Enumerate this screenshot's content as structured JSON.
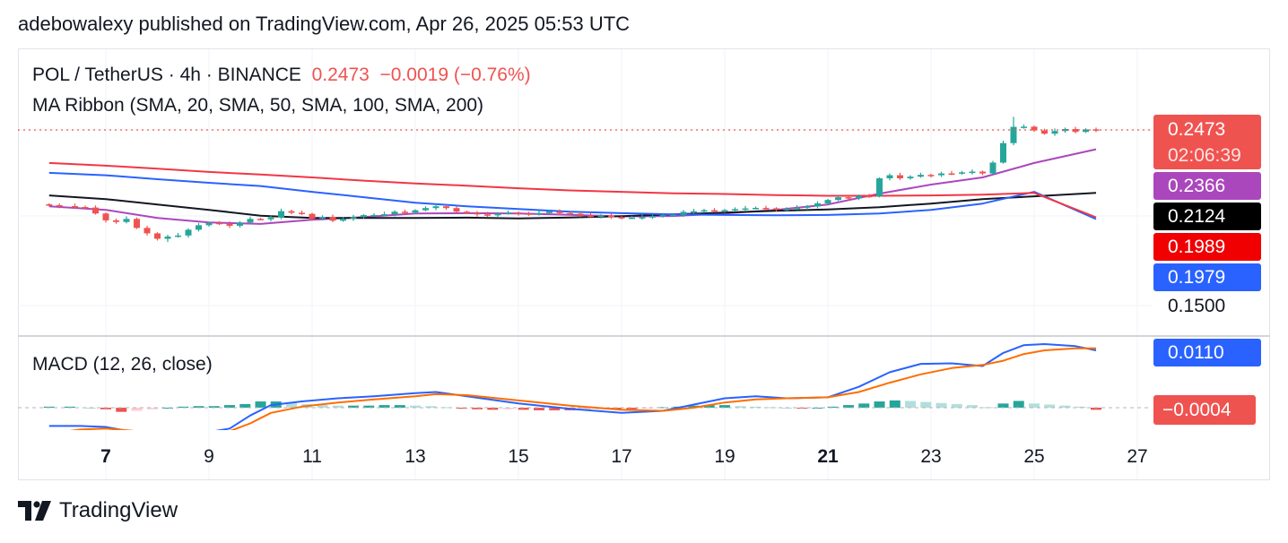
{
  "header": {
    "text": "adebowalexy published on TradingView.com, Apr 26, 2025 05:53 UTC"
  },
  "legend": {
    "pair": "POL / TetherUS · 4h · BINANCE",
    "price": "0.2473",
    "change": "−0.0019 (−0.76%)",
    "ma_ribbon": "MA Ribbon (SMA, 20, SMA, 50, SMA, 100, SMA, 200)",
    "macd": "MACD (12, 26, close)"
  },
  "price_labels": {
    "last": "0.2473",
    "countdown": "02:06:39",
    "sma20": "0.2366",
    "sma50": "0.2124",
    "sma200": "0.1989",
    "sma100": "0.1979",
    "level": "0.1500"
  },
  "macd_labels": {
    "macd": "0.0110",
    "hist": "−0.0004"
  },
  "x_axis": [
    "7",
    "9",
    "11",
    "13",
    "15",
    "17",
    "19",
    "21",
    "23",
    "25",
    "27"
  ],
  "x_axis_bold": [
    "7",
    "21"
  ],
  "footer": {
    "brand": "TradingView"
  },
  "colors": {
    "up": "#26a69a",
    "down": "#ef5350",
    "sma20": "#ab47bc",
    "sma50": "#131722",
    "sma100": "#2962ff",
    "sma200": "#f23645",
    "macd": "#2962ff",
    "signal": "#ff6d00",
    "hist_up": "#26a69a",
    "hist_up_light": "#b2dfdb",
    "hist_down": "#ef5350",
    "hist_down_light": "#ffcdd2"
  },
  "chart_data": [
    {
      "type": "candlestick",
      "title": "POL / TetherUS · 4h · BINANCE",
      "x_unit": "day (April 2025)",
      "x_ticks": [
        7,
        9,
        11,
        13,
        15,
        17,
        19,
        21,
        23,
        25,
        27
      ],
      "y_labels": [
        0.15
      ],
      "last_price": 0.2473,
      "candles": [
        [
          5.9,
          0.2056
        ],
        [
          6.1,
          0.2051
        ],
        [
          6.4,
          0.2046
        ],
        [
          6.6,
          0.2043
        ],
        [
          6.8,
          0.201
        ],
        [
          7.0,
          0.1972
        ],
        [
          7.2,
          0.1963
        ],
        [
          7.4,
          0.198
        ],
        [
          7.6,
          0.193
        ],
        [
          7.8,
          0.19
        ],
        [
          8.0,
          0.187
        ],
        [
          8.2,
          0.1882
        ],
        [
          8.4,
          0.1888
        ],
        [
          8.6,
          0.192
        ],
        [
          8.8,
          0.1945
        ],
        [
          9.0,
          0.1958
        ],
        [
          9.2,
          0.1952
        ],
        [
          9.4,
          0.1942
        ],
        [
          9.6,
          0.196
        ],
        [
          9.8,
          0.198
        ],
        [
          10.0,
          0.1978
        ],
        [
          10.2,
          0.1988
        ],
        [
          10.4,
          0.2023
        ],
        [
          10.6,
          0.2014
        ],
        [
          10.8,
          0.2008
        ],
        [
          11.0,
          0.1982
        ],
        [
          11.2,
          0.199
        ],
        [
          11.4,
          0.197
        ],
        [
          11.6,
          0.1981
        ],
        [
          11.8,
          0.199
        ],
        [
          12.0,
          0.2001
        ],
        [
          12.2,
          0.2002
        ],
        [
          12.4,
          0.2006
        ],
        [
          12.6,
          0.202
        ],
        [
          12.8,
          0.2016
        ],
        [
          13.0,
          0.2028
        ],
        [
          13.2,
          0.204
        ],
        [
          13.4,
          0.205
        ],
        [
          13.6,
          0.204
        ],
        [
          13.8,
          0.202
        ],
        [
          14.0,
          0.2014
        ],
        [
          14.2,
          0.2005
        ],
        [
          14.4,
          0.2
        ],
        [
          14.6,
          0.201
        ],
        [
          14.8,
          0.2015
        ],
        [
          15.0,
          0.201
        ],
        [
          15.2,
          0.2007
        ],
        [
          15.4,
          0.2012
        ],
        [
          15.6,
          0.2021
        ],
        [
          15.8,
          0.2012
        ],
        [
          16.0,
          0.2009
        ],
        [
          16.2,
          0.1998
        ],
        [
          16.4,
          0.1994
        ],
        [
          16.6,
          0.1999
        ],
        [
          16.8,
          0.199
        ],
        [
          17.0,
          0.1985
        ],
        [
          17.2,
          0.1987
        ],
        [
          17.4,
          0.199
        ],
        [
          17.6,
          0.1995
        ],
        [
          17.8,
          0.2001
        ],
        [
          18.0,
          0.2003
        ],
        [
          18.2,
          0.2019
        ],
        [
          18.4,
          0.2022
        ],
        [
          18.6,
          0.2028
        ],
        [
          18.8,
          0.2026
        ],
        [
          19.0,
          0.2029
        ],
        [
          19.2,
          0.2034
        ],
        [
          19.4,
          0.2038
        ],
        [
          19.6,
          0.2041
        ],
        [
          19.8,
          0.2039
        ],
        [
          20.0,
          0.2031
        ],
        [
          20.2,
          0.2035
        ],
        [
          20.4,
          0.2042
        ],
        [
          20.6,
          0.2049
        ],
        [
          20.8,
          0.2066
        ],
        [
          21.0,
          0.2085
        ],
        [
          21.2,
          0.21
        ],
        [
          21.4,
          0.2094
        ],
        [
          21.6,
          0.2107
        ],
        [
          21.8,
          0.2105
        ],
        [
          22.0,
          0.2205
        ],
        [
          22.2,
          0.2222
        ],
        [
          22.4,
          0.2205
        ],
        [
          22.6,
          0.2214
        ],
        [
          22.8,
          0.2224
        ],
        [
          23.0,
          0.2222
        ],
        [
          23.2,
          0.2232
        ],
        [
          23.4,
          0.2231
        ],
        [
          23.6,
          0.2238
        ],
        [
          23.8,
          0.2242
        ],
        [
          24.0,
          0.2232
        ],
        [
          24.2,
          0.2292
        ],
        [
          24.4,
          0.24
        ],
        [
          24.6,
          0.249
        ],
        [
          24.8,
          0.2491
        ],
        [
          25.0,
          0.247
        ],
        [
          25.2,
          0.2452
        ],
        [
          25.4,
          0.2467
        ],
        [
          25.6,
          0.2478
        ],
        [
          25.8,
          0.2462
        ],
        [
          26.0,
          0.2476
        ],
        [
          26.2,
          0.2473
        ]
      ],
      "series": [
        {
          "name": "SMA 20",
          "x": [
            5.9,
            7.0,
            8.0,
            9.0,
            10.0,
            11.0,
            12.0,
            13.0,
            14.0,
            15.0,
            16.0,
            17.0,
            18.0,
            19.0,
            20.0,
            21.0,
            22.0,
            23.0,
            24.0,
            25.0,
            26.2
          ],
          "values": [
            0.205,
            0.203,
            0.1985,
            0.196,
            0.1952,
            0.1975,
            0.199,
            0.201,
            0.2012,
            0.201,
            0.2003,
            0.1994,
            0.1996,
            0.201,
            0.203,
            0.206,
            0.212,
            0.217,
            0.221,
            0.229,
            0.2366
          ]
        },
        {
          "name": "SMA 50",
          "x": [
            5.9,
            7.0,
            8.0,
            9.0,
            10.0,
            11.0,
            12.0,
            13.0,
            14.0,
            15.0,
            16.0,
            17.0,
            18.0,
            19.0,
            20.0,
            21.0,
            22.0,
            23.0,
            24.0,
            25.0,
            26.2
          ],
          "values": [
            0.211,
            0.209,
            0.206,
            0.203,
            0.1998,
            0.1985,
            0.1985,
            0.1985,
            0.1987,
            0.1983,
            0.1988,
            0.1995,
            0.2005,
            0.2015,
            0.2025,
            0.2032,
            0.2045,
            0.2065,
            0.209,
            0.2105,
            0.2124
          ]
        },
        {
          "name": "SMA 100",
          "x": [
            5.9,
            7.0,
            8.0,
            9.0,
            10.0,
            11.0,
            12.0,
            13.0,
            14.0,
            15.0,
            16.0,
            17.0,
            18.0,
            19.0,
            20.0,
            21.0,
            22.0,
            23.0,
            24.0,
            25.0,
            26.2
          ],
          "values": [
            0.2235,
            0.2222,
            0.22,
            0.218,
            0.2162,
            0.213,
            0.21,
            0.207,
            0.205,
            0.2035,
            0.202,
            0.2012,
            0.2005,
            0.2002,
            0.2,
            0.2002,
            0.201,
            0.203,
            0.2065,
            0.213,
            0.1979
          ]
        },
        {
          "name": "SMA 200",
          "x": [
            5.9,
            7.0,
            8.0,
            9.0,
            10.0,
            11.0,
            12.0,
            13.0,
            14.0,
            15.0,
            16.0,
            17.0,
            18.0,
            19.0,
            20.0,
            21.0,
            22.0,
            23.0,
            24.0,
            25.0,
            26.2
          ],
          "values": [
            0.229,
            0.2275,
            0.2258,
            0.224,
            0.2226,
            0.221,
            0.2192,
            0.2176,
            0.2164,
            0.215,
            0.2138,
            0.213,
            0.2122,
            0.2118,
            0.2112,
            0.2108,
            0.2108,
            0.211,
            0.2114,
            0.2124,
            0.1989
          ]
        }
      ]
    },
    {
      "type": "line",
      "title": "MACD (12, 26, close)",
      "x_unit": "day (April 2025)",
      "macd_last": 0.011,
      "hist_last": -0.0004,
      "series": [
        {
          "name": "MACD",
          "x": [
            5.9,
            6.5,
            7.0,
            7.6,
            8.0,
            8.8,
            9.4,
            9.8,
            10.2,
            10.8,
            11.5,
            12.2,
            13.0,
            13.4,
            14.0,
            15.0,
            16.0,
            17.0,
            17.8,
            18.4,
            19.0,
            19.6,
            20.2,
            21.0,
            21.6,
            22.2,
            22.8,
            23.4,
            24.0,
            24.4,
            24.8,
            25.2,
            25.8,
            26.2
          ],
          "values": [
            -0.0035,
            -0.0035,
            -0.0037,
            -0.0048,
            -0.0055,
            -0.005,
            -0.004,
            -0.0015,
            0.0005,
            0.0012,
            0.0018,
            0.0022,
            0.0028,
            0.003,
            0.0022,
            0.0008,
            -0.0002,
            -0.001,
            -0.0006,
            0.0006,
            0.0018,
            0.0022,
            0.0018,
            0.002,
            0.004,
            0.0068,
            0.0084,
            0.0085,
            0.008,
            0.0105,
            0.012,
            0.0122,
            0.0118,
            0.011
          ]
        },
        {
          "name": "Signal",
          "x": [
            5.9,
            6.5,
            7.0,
            7.6,
            8.0,
            8.8,
            9.4,
            9.8,
            10.2,
            10.8,
            11.5,
            12.2,
            13.0,
            13.4,
            14.0,
            15.0,
            16.0,
            17.0,
            17.8,
            18.4,
            19.0,
            19.6,
            20.2,
            21.0,
            21.6,
            22.2,
            22.8,
            23.4,
            24.0,
            24.4,
            24.8,
            25.2,
            25.8,
            26.2
          ],
          "values": [
            -0.005,
            -0.0042,
            -0.004,
            -0.0045,
            -0.005,
            -0.005,
            -0.0045,
            -0.003,
            -0.001,
            0.0002,
            0.001,
            0.0016,
            0.0022,
            0.0026,
            0.0024,
            0.0014,
            0.0004,
            -0.0004,
            -0.0006,
            0.0,
            0.001,
            0.0016,
            0.0018,
            0.002,
            0.003,
            0.0048,
            0.0064,
            0.0076,
            0.0082,
            0.009,
            0.0103,
            0.011,
            0.0114,
            0.0114
          ]
        },
        {
          "name": "Histogram",
          "x": [
            5.9,
            6.3,
            6.7,
            7.0,
            7.3,
            7.6,
            7.9,
            8.2,
            8.5,
            8.8,
            9.1,
            9.4,
            9.7,
            10.0,
            10.3,
            10.6,
            10.9,
            11.2,
            11.5,
            11.8,
            12.1,
            12.4,
            12.7,
            13.0,
            13.3,
            13.6,
            13.9,
            14.2,
            14.5,
            14.8,
            15.1,
            15.4,
            15.7,
            16.0,
            16.3,
            16.6,
            16.9,
            17.2,
            17.5,
            17.8,
            18.1,
            18.4,
            18.7,
            19.0,
            19.3,
            19.6,
            19.9,
            20.2,
            20.5,
            20.8,
            21.1,
            21.4,
            21.7,
            22.0,
            22.3,
            22.6,
            22.9,
            23.2,
            23.5,
            23.8,
            24.1,
            24.4,
            24.7,
            25.0,
            25.3,
            25.6,
            25.9,
            26.2
          ],
          "values": [
            0.0002,
            0.0002,
            0.0,
            -0.0003,
            -0.0008,
            -0.0006,
            -0.0003,
            0.0,
            0.0002,
            0.0003,
            0.0003,
            0.0005,
            0.0007,
            0.0012,
            0.0012,
            0.001,
            0.0007,
            0.0005,
            0.0004,
            0.0004,
            0.0004,
            0.0005,
            0.0005,
            0.0004,
            0.0003,
            0.0001,
            -0.0002,
            -0.0003,
            -0.0004,
            -0.0003,
            -0.0004,
            -0.0005,
            -0.0005,
            -0.0005,
            -0.0004,
            -0.0003,
            -0.0003,
            -0.0003,
            -0.0001,
            0.0001,
            0.0002,
            0.0004,
            0.0005,
            0.0005,
            0.0003,
            0.0002,
            0.0001,
            0.0,
            -0.0001,
            0.0,
            0.0002,
            0.0005,
            0.0008,
            0.0012,
            0.0014,
            0.0013,
            0.0011,
            0.0009,
            0.0007,
            0.0005,
            0.0001,
            0.0008,
            0.0013,
            0.0008,
            0.0006,
            0.0004,
            0.0002,
            -0.0004
          ]
        }
      ]
    }
  ]
}
